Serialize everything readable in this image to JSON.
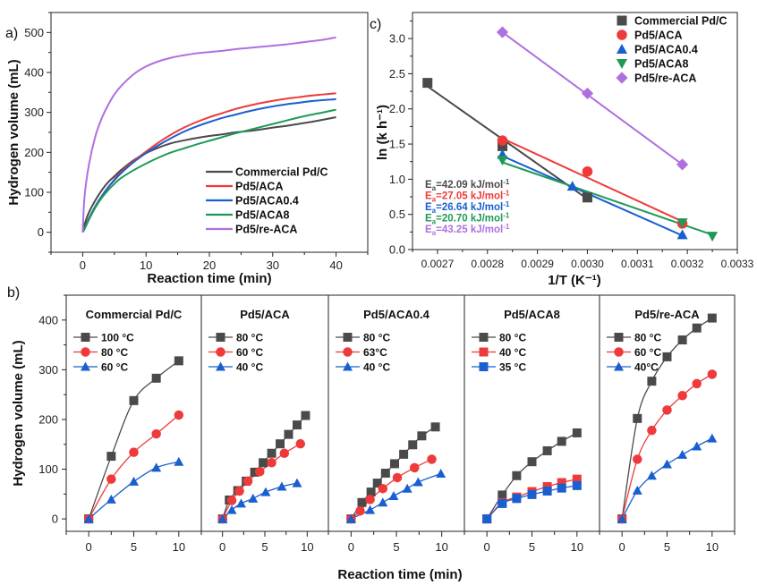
{
  "colors": {
    "black": "#4a4a4a",
    "red": "#ee3a3a",
    "blue": "#1a5fd0",
    "green": "#1f9a55",
    "purple": "#b06fde"
  },
  "chart_data": [
    {
      "id": "a",
      "panel_label": "a)",
      "type": "line",
      "title": "",
      "xlabel": "Reaction time (min)",
      "ylabel": "Hydrogen volume (mL)",
      "xlim": [
        -5,
        45
      ],
      "ylim": [
        -50,
        550
      ],
      "xticks": [
        0,
        10,
        20,
        30,
        40
      ],
      "yticks": [
        0,
        100,
        200,
        300,
        400,
        500
      ],
      "legend_position": "lower-right",
      "x": [
        0,
        0.3,
        1,
        2,
        3,
        4,
        5,
        6,
        8,
        10,
        12,
        14,
        16,
        18,
        20,
        22,
        24,
        26,
        28,
        30,
        32,
        34,
        36,
        38,
        40
      ],
      "series": [
        {
          "name": "Commercial Pd/C",
          "color": "black",
          "values": [
            0,
            20,
            50,
            80,
            105,
            125,
            140,
            155,
            180,
            198,
            212,
            223,
            230,
            236,
            241,
            245,
            250,
            253,
            257,
            262,
            266,
            271,
            276,
            282,
            288
          ]
        },
        {
          "name": "Pd5/ACA",
          "color": "red",
          "values": [
            0,
            10,
            35,
            65,
            90,
            112,
            132,
            150,
            178,
            202,
            225,
            245,
            262,
            276,
            288,
            298,
            308,
            316,
            323,
            329,
            334,
            338,
            342,
            345,
            348
          ]
        },
        {
          "name": "Pd5/ACA0.4",
          "color": "blue",
          "values": [
            0,
            10,
            35,
            65,
            90,
            112,
            130,
            147,
            175,
            198,
            218,
            236,
            252,
            265,
            276,
            286,
            294,
            302,
            309,
            315,
            320,
            324,
            328,
            331,
            333
          ]
        },
        {
          "name": "Pd5/ACA8",
          "color": "green",
          "values": [
            0,
            8,
            32,
            62,
            86,
            105,
            121,
            135,
            155,
            172,
            187,
            200,
            210,
            220,
            229,
            238,
            247,
            255,
            263,
            271,
            279,
            287,
            294,
            300,
            307
          ]
        },
        {
          "name": "Pd5/re-ACA",
          "color": "purple",
          "values": [
            0,
            90,
            170,
            240,
            285,
            318,
            345,
            365,
            395,
            415,
            428,
            437,
            443,
            448,
            451,
            454,
            458,
            461,
            464,
            467,
            470,
            474,
            478,
            482,
            488
          ]
        }
      ]
    },
    {
      "id": "c",
      "panel_label": "c)",
      "type": "scatter",
      "title": "",
      "xlabel": "1/T (K⁻¹)",
      "ylabel": "ln (k h⁻¹)",
      "xlim": [
        0.00265,
        0.0033
      ],
      "ylim": [
        0.0,
        3.37
      ],
      "xticks": [
        "0.0027",
        "0.0028",
        "0.0029",
        "0.0030",
        "0.0031",
        "0.0032",
        "0.0033"
      ],
      "yticks": [
        "0.0",
        "0.5",
        "1.0",
        "1.5",
        "2.0",
        "2.5",
        "3.0"
      ],
      "legend_position": "top-right",
      "series": [
        {
          "name": "Commercial Pd/C",
          "color": "black",
          "marker": "square",
          "x": [
            0.00268,
            0.00283,
            0.003
          ],
          "y": [
            2.37,
            1.47,
            0.74
          ],
          "fit": [
            [
              0.00268,
              2.32
            ],
            [
              0.003,
              0.72
            ]
          ],
          "ea_label": "Ea=42.09 kJ/mol-1"
        },
        {
          "name": "Pd5/ACA",
          "color": "red",
          "marker": "circle",
          "x": [
            0.00283,
            0.003,
            0.00319
          ],
          "y": [
            1.55,
            1.11,
            0.37
          ],
          "fit": [
            [
              0.00283,
              1.58
            ],
            [
              0.00319,
              0.4
            ]
          ],
          "ea_label": "Ea=27.05 kJ/mol-1"
        },
        {
          "name": "Pd5/ACA0.4",
          "color": "blue",
          "marker": "triangle-up",
          "x": [
            0.00283,
            0.00297,
            0.00319
          ],
          "y": [
            1.35,
            0.9,
            0.21
          ],
          "fit": [
            [
              0.00283,
              1.33
            ],
            [
              0.00319,
              0.2
            ]
          ],
          "ea_label": "Ea=26.64 kJ/mol-1"
        },
        {
          "name": "Pd5/ACA8",
          "color": "green",
          "marker": "triangle-down",
          "x": [
            0.00283,
            0.00319,
            0.00325
          ],
          "y": [
            1.27,
            0.38,
            0.19
          ],
          "fit": [
            [
              0.00283,
              1.24
            ],
            [
              0.00325,
              0.21
            ]
          ],
          "ea_label": "Ea=20.70 kJ/mol-1"
        },
        {
          "name": "Pd5/re-ACA",
          "color": "purple",
          "marker": "diamond",
          "x": [
            0.00283,
            0.003,
            0.00319
          ],
          "y": [
            3.09,
            2.22,
            1.21
          ],
          "fit": [
            [
              0.00283,
              3.09
            ],
            [
              0.00319,
              1.21
            ]
          ],
          "ea_label": "Ea=43.25 kJ/mol-1"
        }
      ]
    },
    {
      "id": "b",
      "panel_label": "b)",
      "type": "line",
      "xlabel": "Reaction time (min)",
      "ylabel": "Hydrogen volume (mL)",
      "ylim": [
        -25,
        450
      ],
      "xlim": [
        -2.5,
        12.5
      ],
      "xticks": [
        0,
        5,
        10
      ],
      "yticks": [
        0,
        100,
        200,
        300,
        400
      ],
      "legend_position": "top-left",
      "subplots": [
        {
          "title": "Commercial Pd/C",
          "series": [
            {
              "name": "100 °C",
              "color": "black",
              "marker": "square",
              "x": [
                0,
                2.5,
                5,
                7.5,
                10
              ],
              "y": [
                0,
                126,
                238,
                283,
                318
              ]
            },
            {
              "name": "80 °C",
              "color": "red",
              "marker": "circle",
              "x": [
                0,
                2.5,
                5,
                7.5,
                10
              ],
              "y": [
                0,
                80,
                134,
                171,
                209
              ]
            },
            {
              "name": "60 °C",
              "color": "blue",
              "marker": "triangle-up",
              "x": [
                0,
                2.5,
                5,
                7.5,
                10
              ],
              "y": [
                0,
                39,
                75,
                103,
                115
              ]
            }
          ]
        },
        {
          "title": "Pd5/ACA",
          "series": [
            {
              "name": "80 °C",
              "color": "black",
              "marker": "square",
              "x": [
                0,
                0.8,
                1.8,
                2.8,
                3.8,
                4.8,
                5.8,
                6.8,
                7.8,
                8.8,
                9.8
              ],
              "y": [
                0,
                38,
                57,
                76,
                94,
                113,
                132,
                151,
                170,
                189,
                208
              ]
            },
            {
              "name": "60 °C",
              "color": "red",
              "marker": "circle",
              "x": [
                0,
                1.1,
                2.0,
                3.0,
                4.4,
                5.8,
                7.3,
                9.2
              ],
              "y": [
                0,
                37,
                56,
                76,
                95,
                113,
                132,
                151
              ]
            },
            {
              "name": "40 °C",
              "color": "blue",
              "marker": "triangle-up",
              "x": [
                0,
                1.1,
                2.2,
                3.6,
                5.1,
                7.0,
                8.8
              ],
              "y": [
                0,
                18,
                31,
                41,
                54,
                65,
                72
              ]
            }
          ]
        },
        {
          "title": "Pd5/ACA0.4",
          "series": [
            {
              "name": "80 °C",
              "color": "black",
              "marker": "square",
              "x": [
                0,
                1.2,
                2.2,
                2.9,
                3.8,
                4.8,
                5.8,
                6.8,
                7.8,
                9.3
              ],
              "y": [
                0,
                33,
                54,
                72,
                92,
                111,
                130,
                149,
                167,
                185
              ]
            },
            {
              "name": "63°C",
              "color": "red",
              "marker": "circle",
              "x": [
                0,
                1.0,
                2.1,
                3.5,
                5.1,
                7.0,
                8.9
              ],
              "y": [
                0,
                16,
                39,
                61,
                83,
                103,
                120
              ]
            },
            {
              "name": "40 °C",
              "color": "blue",
              "marker": "triangle-up",
              "x": [
                0,
                2.1,
                3.5,
                4.7,
                6.2,
                7.4,
                9.9
              ],
              "y": [
                0,
                18,
                33,
                46,
                61,
                74,
                91
              ]
            }
          ]
        },
        {
          "title": "Pd5/ACA8",
          "series": [
            {
              "name": "80 °C",
              "color": "black",
              "marker": "square",
              "x": [
                0,
                1.7,
                3.3,
                5.0,
                6.7,
                8.3,
                10
              ],
              "y": [
                0,
                48,
                87,
                115,
                137,
                156,
                173
              ]
            },
            {
              "name": "40 °C",
              "color": "red",
              "marker": "square",
              "x": [
                0,
                1.7,
                3.3,
                5.0,
                6.7,
                8.3,
                10
              ],
              "y": [
                0,
                33,
                44,
                55,
                65,
                73,
                80
              ]
            },
            {
              "name": "35 °C",
              "color": "blue",
              "marker": "square",
              "x": [
                0,
                1.7,
                3.3,
                5.0,
                6.7,
                8.3,
                10
              ],
              "y": [
                0,
                31,
                41,
                49,
                56,
                62,
                67
              ]
            }
          ]
        },
        {
          "title": "Pd5/re-ACA",
          "series": [
            {
              "name": "80 °C",
              "color": "black",
              "marker": "square",
              "x": [
                0,
                1.7,
                3.3,
                5.0,
                6.7,
                8.3,
                10
              ],
              "y": [
                0,
                202,
                277,
                326,
                360,
                384,
                404
              ]
            },
            {
              "name": "60 °C",
              "color": "red",
              "marker": "circle",
              "x": [
                0,
                1.7,
                3.3,
                5.0,
                6.7,
                8.3,
                10
              ],
              "y": [
                0,
                120,
                178,
                219,
                248,
                272,
                291
              ]
            },
            {
              "name": "40°C",
              "color": "blue",
              "marker": "triangle-up",
              "x": [
                0,
                1.7,
                3.3,
                5.0,
                6.7,
                8.3,
                10
              ],
              "y": [
                0,
                57,
                87,
                110,
                129,
                146,
                162
              ]
            }
          ]
        }
      ]
    }
  ]
}
